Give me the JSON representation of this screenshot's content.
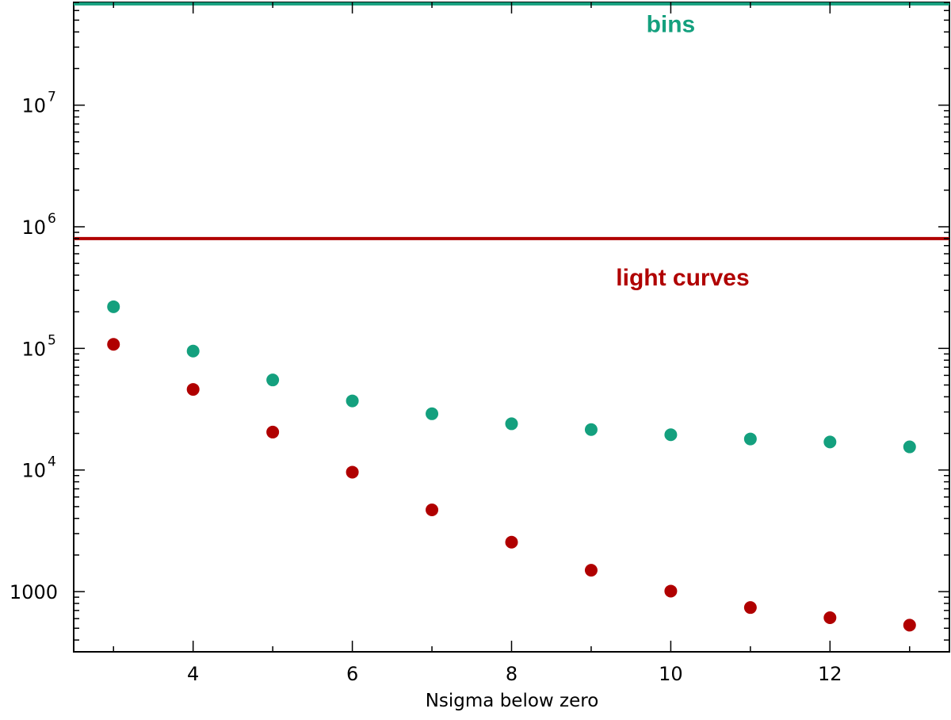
{
  "chart_data": {
    "type": "scatter",
    "title": "",
    "xlabel": "Nsigma below zero",
    "ylabel": "",
    "xlim": [
      2.5,
      13.5
    ],
    "ylim": [
      320,
      70000000
    ],
    "yscale": "log",
    "grid": false,
    "x_ticks": [
      4,
      6,
      8,
      10,
      12
    ],
    "x_tick_labels": [
      "4",
      "6",
      "8",
      "10",
      "12"
    ],
    "y_ticks": [
      {
        "value": 1000,
        "base": "1000",
        "exp": ""
      },
      {
        "value": 10000,
        "base": "10",
        "exp": "4"
      },
      {
        "value": 100000,
        "base": "10",
        "exp": "5"
      },
      {
        "value": 1000000,
        "base": "10",
        "exp": "6"
      },
      {
        "value": 10000000,
        "base": "10",
        "exp": "7"
      }
    ],
    "x": [
      3,
      4,
      5,
      6,
      7,
      8,
      9,
      10,
      11,
      12,
      13
    ],
    "series": [
      {
        "key": "bins",
        "color": "#14a07e",
        "values": [
          220000,
          95000,
          55000,
          37000,
          29000,
          24000,
          21500,
          19500,
          18000,
          17000,
          15500
        ]
      },
      {
        "key": "light-curves",
        "color": "#b00000",
        "values": [
          108000,
          46000,
          20500,
          9600,
          4700,
          2550,
          1500,
          1010,
          740,
          610,
          530
        ]
      }
    ],
    "reference_lines": [
      {
        "key": "bins",
        "y": 68000000,
        "color": "#14a07e"
      },
      {
        "key": "light-curves",
        "y": 800000,
        "color": "#b00000"
      }
    ],
    "annotations": [
      {
        "key": "bins",
        "text": "bins",
        "color": "#14a07e",
        "x": 10.0,
        "y": 40000000
      },
      {
        "key": "light-curves",
        "text": "light curves",
        "color": "#b00000",
        "x": 10.15,
        "y": 330000
      }
    ]
  }
}
